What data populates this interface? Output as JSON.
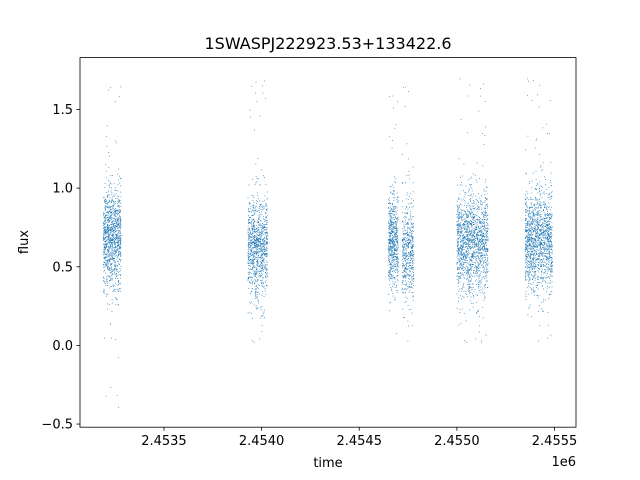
{
  "chart_data": {
    "type": "scatter",
    "title": "1SWASPJ222923.53+133422.6",
    "xlabel": "time",
    "ylabel": "flux",
    "x_offset_label": "1e6",
    "xlim": [
      2.45307,
      2.45561
    ],
    "ylim": [
      -0.52,
      1.83
    ],
    "x_ticks": [
      2.4535,
      2.454,
      2.4545,
      2.455,
      2.4555
    ],
    "x_tick_labels": [
      "2.4535",
      "2.4540",
      "2.4545",
      "2.4550",
      "2.4555"
    ],
    "y_ticks": [
      -0.5,
      0.0,
      0.5,
      1.0,
      1.5
    ],
    "y_tick_labels": [
      "−0.5",
      "0.0",
      "0.5",
      "1.0",
      "1.5"
    ],
    "grid": false,
    "point_color": "#1f77b4",
    "clusters": [
      {
        "x_start": 2.45319,
        "x_end": 2.45328,
        "flux_center": 0.68,
        "flux_spread": 0.16,
        "flux_min": -0.4,
        "flux_max": 1.73,
        "points": 1100
      },
      {
        "x_start": 2.45393,
        "x_end": 2.45403,
        "flux_center": 0.62,
        "flux_spread": 0.16,
        "flux_min": 0.0,
        "flux_max": 1.72,
        "points": 1000
      },
      {
        "x_start": 2.45465,
        "x_end": 2.4547,
        "flux_center": 0.65,
        "flux_spread": 0.15,
        "flux_min": 0.03,
        "flux_max": 1.69,
        "points": 600
      },
      {
        "x_start": 2.45472,
        "x_end": 2.45478,
        "flux_center": 0.6,
        "flux_spread": 0.16,
        "flux_min": 0.0,
        "flux_max": 1.66,
        "points": 500
      },
      {
        "x_start": 2.455,
        "x_end": 2.45516,
        "flux_center": 0.65,
        "flux_spread": 0.16,
        "flux_min": 0.0,
        "flux_max": 1.7,
        "points": 1500
      },
      {
        "x_start": 2.45535,
        "x_end": 2.45549,
        "flux_center": 0.66,
        "flux_spread": 0.16,
        "flux_min": 0.0,
        "flux_max": 1.7,
        "points": 1400
      }
    ]
  }
}
